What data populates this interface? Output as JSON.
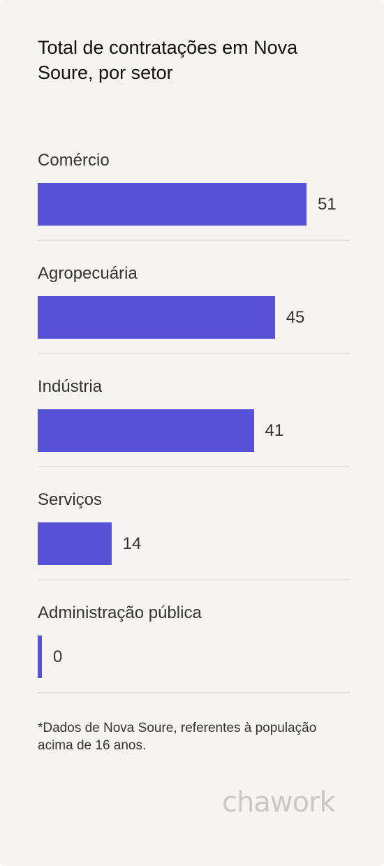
{
  "header": {
    "title": "Total de contratações em Nova Soure, por setor"
  },
  "chart_data": {
    "type": "bar",
    "orientation": "horizontal",
    "categories": [
      "Comércio",
      "Agropecuária",
      "Indústria",
      "Serviços",
      "Administração pública"
    ],
    "values": [
      51,
      45,
      41,
      14,
      0
    ],
    "value_labels": [
      "51",
      "45",
      "41",
      "14",
      "0"
    ],
    "title": "Total de contratações em Nova Soure, por setor",
    "xlabel": "",
    "ylabel": "",
    "xlim": [
      0,
      51
    ],
    "grid": false,
    "legend": "none",
    "bar_color": "#5651d5"
  },
  "footnote": {
    "text": "*Dados de Nova Soure, referentes à população acima de 16 anos."
  },
  "logo": {
    "text": "chawork",
    "color": "#c9c8c3"
  },
  "colors": {
    "background": "#f5f4f2",
    "accent": "#5651d5",
    "divider": "#e3e2df"
  }
}
